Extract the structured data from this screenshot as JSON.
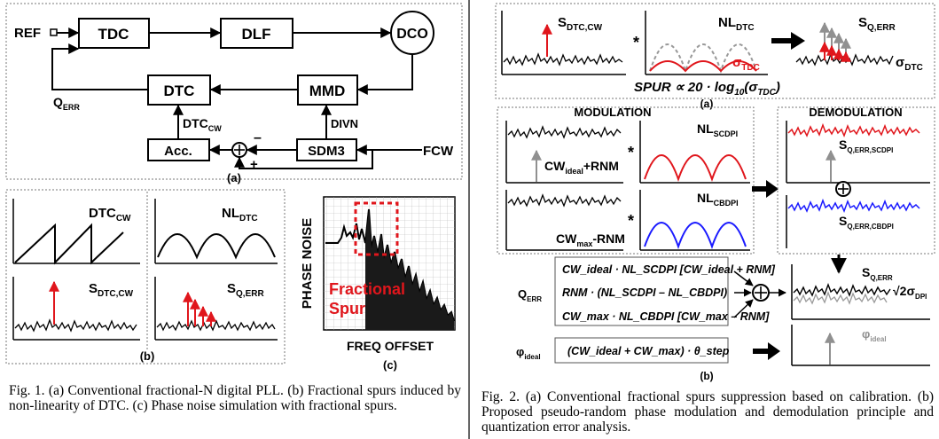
{
  "fig1": {
    "a": {
      "ref": "REF",
      "tdc": "TDC",
      "dlf": "DLF",
      "dco": "DCO",
      "dtc": "DTC",
      "mmd": "MMD",
      "acc": "Acc.",
      "sdm": "SDM3",
      "qerr_q": "Q",
      "qerr_sub": "ERR",
      "dtccw_main": "DTC",
      "dtccw_sub": "CW",
      "divn": "DIVN",
      "fcw": "FCW",
      "minus": "–",
      "plus": "+",
      "panel": "(a)"
    },
    "b": {
      "dtccw_main": "DTC",
      "dtccw_sub": "CW",
      "sdtc_main": "S",
      "sdtc_sub": "DTC,CW",
      "panel": "(b)",
      "nldtc_main": "NL",
      "nldtc_sub": "DTC",
      "sqerr_main": "S",
      "sqerr_sub": "Q,ERR"
    },
    "c": {
      "ylabel": "PHASE NOISE",
      "xlabel": "FREQ OFFSET",
      "annot1": "Fractional",
      "annot2": "Spur",
      "panel": "(c)"
    },
    "caption": "Fig. 1.  (a) Conventional fractional-N digital PLL. (b) Fractional spurs induced by non-linearity of DTC. (c) Phase noise simulation with fractional spurs."
  },
  "fig2": {
    "a": {
      "sdtc_main": "S",
      "sdtc_sub": "DTC,CW",
      "nl_main": "NL",
      "nl_sub": "DTC",
      "sq_main": "S",
      "sq_sub": "Q,ERR",
      "sigma_tdc": "σ",
      "sigma_tdc_sub": "TDC",
      "sigma_dtc": "σ",
      "sigma_dtc_sub": "DTC",
      "conv": "*",
      "spur_formula_a": "SPUR ∝ 20 · log",
      "spur_formula_sub": "10",
      "spur_formula_b": "(σ",
      "spur_formula_sub2": "TDC",
      "spur_formula_c": ")",
      "panel": "(a)"
    },
    "b": {
      "modulation": "MODULATION",
      "demodulation": "DEMODULATION",
      "cw_ideal": "CW",
      "cw_ideal_sub": "ideal",
      "cw_ideal_tail": "+RNM",
      "cw_max": "CW",
      "cw_max_sub": "max",
      "cw_max_tail": "-RNM",
      "nl_scdpi": "NL",
      "nl_scdpi_sub": "SCDPI",
      "nl_cbdpi": "NL",
      "nl_cbdpi_sub": "CBDPI",
      "sq_scdpi": "S",
      "sq_scdpi_sub": "Q,ERR,SCDPI",
      "sq_cbdpi": "S",
      "sq_cbdpi_sub": "Q,ERR,CBDPI",
      "sq": "S",
      "sq_sub": "Q,ERR",
      "root2": "√2σ",
      "root2_sub": "DPI",
      "phi_ideal": "φ",
      "phi_ideal_sub": "ideal",
      "qerr": "Q",
      "qerr_sub": "ERR",
      "phi_label": "φ",
      "phi_label_sub": "ideal",
      "eq1": "CW_ideal · NL_SCDPI [CW_ideal + RNM]",
      "eq2": "RNM · (NL_SCDPI – NL_CBDPI)",
      "eq3": "CW_max · NL_CBDPI [CW_max – RNM]",
      "eq4": "(CW_ideal + CW_max) · θ_step",
      "conv": "*",
      "panel": "(b)"
    },
    "caption": "Fig. 2.  (a) Conventional fractional spurs suppression based on calibration. (b) Proposed pseudo-random phase modulation and demodulation principle and quantization error analysis."
  }
}
